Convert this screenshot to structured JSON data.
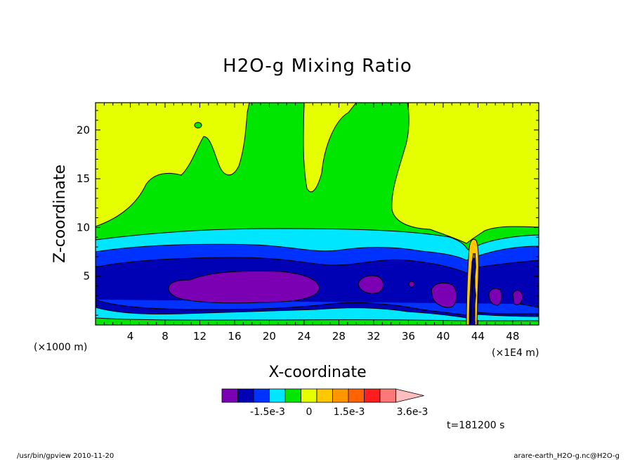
{
  "chart_data": {
    "type": "heatmap",
    "title": "H2O-g Mixing Ratio",
    "xlabel": "X-coordinate",
    "ylabel": "Z-coordinate",
    "x_ticks": [
      "4",
      "8",
      "12",
      "16",
      "20",
      "24",
      "28",
      "32",
      "36",
      "40",
      "44",
      "48"
    ],
    "y_ticks": [
      "5",
      "10",
      "15",
      "20"
    ],
    "x_unit": "(×1E4 m)",
    "y_unit": "(×1000 m)",
    "xlim": [
      0,
      51
    ],
    "ylim": [
      0,
      22.8
    ],
    "colorbar": {
      "colors": [
        "#7b00b4",
        "#0000b4",
        "#0032ff",
        "#00e6ff",
        "#00e600",
        "#e6ff00",
        "#ffc800",
        "#ff9600",
        "#ff6400",
        "#ff1e1e",
        "#ff7878",
        "#ffbebe"
      ],
      "tick_labels": [
        "-1.5e-3",
        "0",
        "1.5e-3",
        "3.6e-3"
      ]
    },
    "time_label": "t=181200 s"
  },
  "footer": {
    "left": "/usr/bin/gpview  2010-11-20",
    "right": "arare-earth_H2O-g.nc@H2O-g"
  }
}
